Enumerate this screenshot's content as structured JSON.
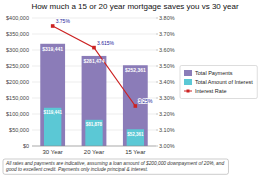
{
  "chart_data": {
    "type": "bar",
    "title": "How much a 15 or 20 year mortgage saves you vs 30 year",
    "categories": [
      "30 Year",
      "20 Year",
      "15 Year"
    ],
    "series": [
      {
        "name": "Total Payments",
        "type": "bar",
        "color": "#8B7CB8",
        "values": [
          319441,
          281474,
          252361
        ],
        "value_labels": [
          "$319,441",
          "$281,474",
          "$252,361"
        ]
      },
      {
        "name": "Total Amount of Interest",
        "type": "bar",
        "color": "#5BC8D5",
        "values": [
          119441,
          81878,
          52361
        ],
        "value_labels": [
          "$119,441",
          "$81,878",
          "$52,361"
        ]
      },
      {
        "name": "Interest Rate",
        "type": "line",
        "axis": "y2",
        "color": "#CC2222",
        "marker": "square",
        "values": [
          3.75,
          3.615,
          3.25
        ],
        "value_labels": [
          "3.75%",
          "3.615%",
          "3.25%"
        ]
      }
    ],
    "ylim": [
      0,
      400000
    ],
    "yticks": [
      {
        "value": 0,
        "label": "$0"
      },
      {
        "value": 50000,
        "label": "$50,000"
      },
      {
        "value": 100000,
        "label": "$100,000"
      },
      {
        "value": 150000,
        "label": "$150,000"
      },
      {
        "value": 200000,
        "label": "$200,000"
      },
      {
        "value": 250000,
        "label": "$250,000"
      },
      {
        "value": 300000,
        "label": "$300,000"
      },
      {
        "value": 350000,
        "label": "$350,000"
      },
      {
        "value": 400000,
        "label": "$400,000"
      }
    ],
    "y2lim": [
      3.0,
      3.8
    ],
    "y2ticks": [
      {
        "value": 3.0,
        "label": "3.00%"
      },
      {
        "value": 3.1,
        "label": "3.10%"
      },
      {
        "value": 3.2,
        "label": "3.20%"
      },
      {
        "value": 3.3,
        "label": "3.30%"
      },
      {
        "value": 3.4,
        "label": "3.40%"
      },
      {
        "value": 3.5,
        "label": "3.50%"
      },
      {
        "value": 3.6,
        "label": "3.60%"
      },
      {
        "value": 3.7,
        "label": "3.70%"
      },
      {
        "value": 3.8,
        "label": "3.80%"
      }
    ],
    "grid": true,
    "legend": "right",
    "data_labels": true,
    "annotations": [
      "All rates and payments are indicative, assuming a loan amount of $200,000 downpayment of 20%, and\ngood to excellent credit. Payments only include principal & interest."
    ]
  }
}
